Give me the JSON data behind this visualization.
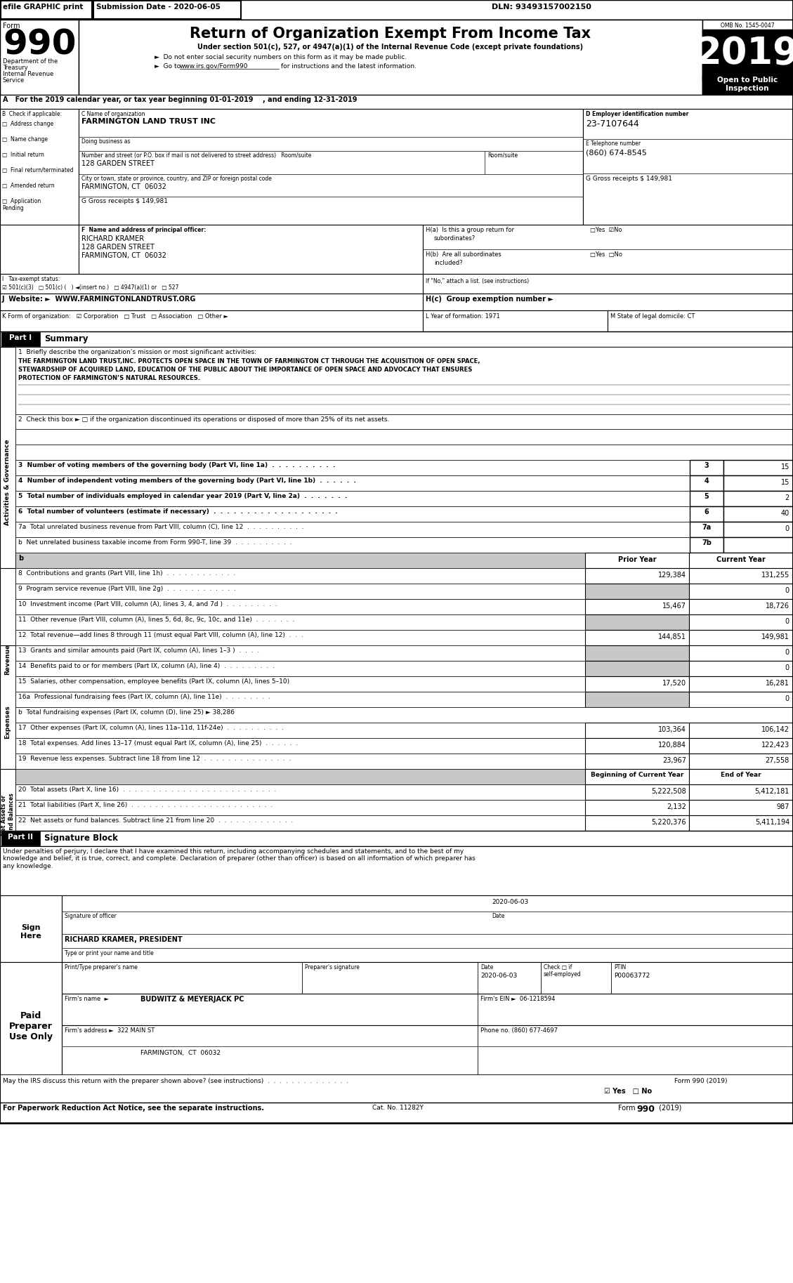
{
  "efile": "efile GRAPHIC print",
  "submission_date": "Submission Date - 2020-06-05",
  "dln": "DLN: 93493157002150",
  "dept1": "Department of the",
  "dept2": "Treasury",
  "dept3": "Internal Revenue",
  "dept4": "Service",
  "title_main": "Return of Organization Exempt From Income Tax",
  "subtitle1": "Under section 501(c), 527, or 4947(a)(1) of the Internal Revenue Code (except private foundations)",
  "subtitle2": "Do not enter social security numbers on this form as it may be made public.",
  "subtitle3": "Go to www.irs.gov/Form990 for instructions and the latest information.",
  "omb": "OMB No. 1545-0047",
  "year": "2019",
  "open_to_public": "Open to Public\nInspection",
  "section_a": "A   For the 2019 calendar year, or tax year beginning 01-01-2019    , and ending 12-31-2019",
  "org_name_label": "C Name of organization",
  "org_name": "FARMINGTON LAND TRUST INC",
  "ein_label": "D Employer identification number",
  "ein": "23-7107644",
  "dba_label": "Doing business as",
  "address_label": "Number and street (or P.O. box if mail is not delivered to street address)   Room/suite",
  "address": "128 GARDEN STREET",
  "city_label": "City or town, state or province, country, and ZIP or foreign postal code",
  "city": "FARMINGTON, CT  06032",
  "phone_label": "E Telephone number",
  "phone": "(860) 674-8545",
  "gross_receipts": "G Gross receipts $ 149,981",
  "principal_label": "F  Name and address of principal officer:",
  "principal_name": "RICHARD KRAMER",
  "principal_addr1": "128 GARDEN STREET",
  "principal_addr2": "FARMINGTON, CT  06032",
  "ha_label": "H(a)  Is this a group return for",
  "ha_q": "subordinates?",
  "hb_label": "H(b)  Are all subordinates",
  "hb_q": "included?",
  "hif_label": "If \"No,\" attach a list. (see instructions)",
  "tax_exempt_label": "I   Tax-exempt status:",
  "tax_exempt_vals": "☑ 501(c)(3)   □ 501(c) (   ) ◄(insert no.)   □ 4947(a)(1) or   □ 527",
  "website_label": "J  Website: ►  WWW.FARMINGTONLANDTRUST.ORG",
  "hc_label": "H(c)  Group exemption number ►",
  "k_label": "K Form of organization:   ☑ Corporation   □ Trust   □ Association   □ Other ►",
  "l_label": "L Year of formation: 1971",
  "m_label": "M State of legal domicile: CT",
  "part1_label": "Part I",
  "part1_title": "Summary",
  "line1_label": "1  Briefly describe the organization’s mission or most significant activities:",
  "line1_text1": "THE FARMINGTON LAND TRUST,INC. PROTECTS OPEN SPACE IN THE TOWN OF FARMINGTON CT THROUGH THE ACQUISITION OF OPEN SPACE,",
  "line1_text2": "STEWARDSHIP OF ACQUIRED LAND, EDUCATION OF THE PUBLIC ABOUT THE IMPORTANCE OF OPEN SPACE AND ADVOCACY THAT ENSURES",
  "line1_text3": "PROTECTION OF FARMINGTON’S NATURAL RESOURCES.",
  "line2_label": "2  Check this box ► □ if the organization discontinued its operations or disposed of more than 25% of its net assets.",
  "line3_label": "3  Number of voting members of the governing body (Part VI, line 1a)  .  .  .  .  .  .  .  .  .  .",
  "line3_num": "3",
  "line3_val": "15",
  "line4_label": "4  Number of independent voting members of the governing body (Part VI, line 1b)  .  .  .  .  .  .",
  "line4_num": "4",
  "line4_val": "15",
  "line5_label": "5  Total number of individuals employed in calendar year 2019 (Part V, line 2a)  .  .  .  .  .  .  .",
  "line5_num": "5",
  "line5_val": "2",
  "line6_label": "6  Total number of volunteers (estimate if necessary)  .  .  .  .  .  .  .  .  .  .  .  .  .  .  .  .  .  .  .",
  "line6_num": "6",
  "line6_val": "40",
  "line7a_label": "7a  Total unrelated business revenue from Part VIII, column (C), line 12  .  .  .  .  .  .  .  .  .  .",
  "line7a_num": "7a",
  "line7a_val": "0",
  "line7b_label": "b  Net unrelated business taxable income from Form 990-T, line 39  .  .  .  .  .  .  .  .  .  .",
  "line7b_num": "7b",
  "line7b_val": "",
  "prior_year_header": "Prior Year",
  "current_year_header": "Current Year",
  "line8_label": "8  Contributions and grants (Part VIII, line 1h)  .  .  .  .  .  .  .  .  .  .  .  .",
  "line8_num": "8",
  "line8_prior": "129,384",
  "line8_curr": "131,255",
  "line9_label": "9  Program service revenue (Part VIII, line 2g)  .  .  .  .  .  .  .  .  .  .  .  .",
  "line9_num": "9",
  "line9_prior": "",
  "line9_curr": "0",
  "line10_label": "10  Investment income (Part VIII, column (A), lines 3, 4, and 7d )  .  .  .  .  .  .  .  .  .",
  "line10_num": "10",
  "line10_prior": "15,467",
  "line10_curr": "18,726",
  "line11_label": "11  Other revenue (Part VIII, column (A), lines 5, 6d, 8c, 9c, 10c, and 11e)  .  .  .  .  .  .  .",
  "line11_num": "11",
  "line11_prior": "",
  "line11_curr": "0",
  "line12_label": "12  Total revenue—add lines 8 through 11 (must equal Part VIII, column (A), line 12)  .  .  .",
  "line12_num": "12",
  "line12_prior": "144,851",
  "line12_curr": "149,981",
  "line13_label": "13  Grants and similar amounts paid (Part IX, column (A), lines 1–3 )  .  .  .  .",
  "line13_num": "13",
  "line13_prior": "",
  "line13_curr": "0",
  "line14_label": "14  Benefits paid to or for members (Part IX, column (A), line 4)  .  .  .  .  .  .  .  .  .",
  "line14_num": "14",
  "line14_prior": "",
  "line14_curr": "0",
  "line15_label": "15  Salaries, other compensation, employee benefits (Part IX, column (A), lines 5–10)",
  "line15_num": "15",
  "line15_prior": "17,520",
  "line15_curr": "16,281",
  "line16a_label": "16a  Professional fundraising fees (Part IX, column (A), line 11e)  .  .  .  .  .  .  .  .",
  "line16a_num": "16a",
  "line16a_prior": "",
  "line16a_curr": "0",
  "line16b_label": "b  Total fundraising expenses (Part IX, column (D), line 25) ► 38,286",
  "line17_label": "17  Other expenses (Part IX, column (A), lines 11a–11d, 11f-24e)  .  .  .  .  .  .  .  .  .  .",
  "line17_num": "17",
  "line17_prior": "103,364",
  "line17_curr": "106,142",
  "line18_label": "18  Total expenses. Add lines 13–17 (must equal Part IX, column (A), line 25)  .  .  .  .  .  .",
  "line18_num": "18",
  "line18_prior": "120,884",
  "line18_curr": "122,423",
  "line19_label": "19  Revenue less expenses. Subtract line 18 from line 12  .  .  .  .  .  .  .  .  .  .  .  .  .  .  .",
  "line19_num": "19",
  "line19_prior": "23,967",
  "line19_curr": "27,558",
  "beg_year_header": "Beginning of Current Year",
  "end_year_header": "End of Year",
  "line20_label": "20  Total assets (Part X, line 16)  .  .  .  .  .  .  .  .  .  .  .  .  .  .  .  .  .  .  .  .  .  .  .  .  .  .",
  "line20_num": "20",
  "line20_beg": "5,222,508",
  "line20_end": "5,412,181",
  "line21_label": "21  Total liabilities (Part X, line 26)  .  .  .  .  .  .  .  .  .  .  .  .  .  .  .  .  .  .  .  .  .  .  .  .",
  "line21_num": "21",
  "line21_beg": "2,132",
  "line21_end": "987",
  "line22_label": "22  Net assets or fund balances. Subtract line 21 from line 20  .  .  .  .  .  .  .  .  .  .  .  .  .",
  "line22_num": "22",
  "line22_beg": "5,220,376",
  "line22_end": "5,411,194",
  "part2_label": "Part II",
  "part2_title": "Signature Block",
  "sig_text": "Under penalties of perjury, I declare that I have examined this return, including accompanying schedules and statements, and to the best of my\nknowledge and belief, it is true, correct, and complete. Declaration of preparer (other than officer) is based on all information of which preparer has\nany knowledge.",
  "sign_here": "Sign\nHere",
  "sig_date_val": "2020-06-03",
  "sig_officer_label": "Signature of officer",
  "sig_date_label": "Date",
  "sig_name": "RICHARD KRAMER, PRESIDENT",
  "sig_type": "Type or print your name and title",
  "paid_preparer": "Paid\nPreparer\nUse Only",
  "preparer_name_label": "Print/Type preparer's name",
  "preparer_sig_label": "Preparer's signature",
  "preparer_date_label": "Date",
  "preparer_check_label": "Check □ if\nself-employed",
  "preparer_ptin_label": "PTIN",
  "preparer_ptin": "P00063772",
  "preparer_date": "2020-06-03",
  "firm_name": "BUDWITZ & MEYERJACK PC",
  "firm_ein_label": "Firm's EIN ►",
  "firm_ein": "06-1218594",
  "firm_address_label": "Firm's address ►",
  "firm_address": "322 MAIN ST",
  "firm_city": "FARMINGTON,  CT  06032",
  "firm_phone": "Phone no. (860) 677-4697",
  "footer1": "May the IRS discuss this return with the preparer shown above? (see instructions)  .  .  .  .  .  .  .  .  .  .  .  .  .  .",
  "footer1b": "☑ Yes   □ No    Form 990 (2019)",
  "footer2": "For Paperwork Reduction Act Notice, see the separate instructions.",
  "footer_cat": "Cat. No. 11282Y",
  "footer_form": "Form 990 (2019)",
  "sidebar_gov": "Activities & Governance",
  "sidebar_rev": "Revenue",
  "sidebar_exp": "Expenses",
  "sidebar_net": "Net Assets or\nFund Balances"
}
